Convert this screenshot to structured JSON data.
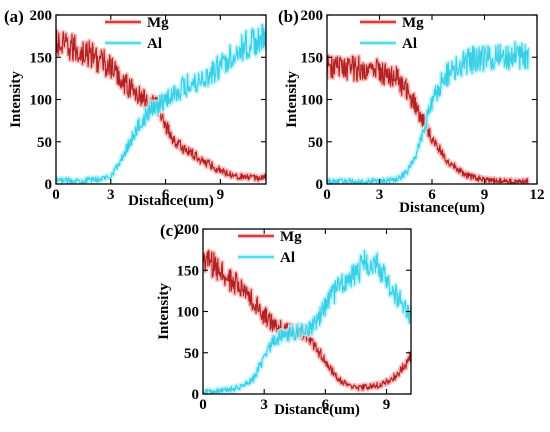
{
  "chart_data": [
    {
      "type": "line",
      "panel_label": "(a)",
      "xlabel": "Distance(um)",
      "ylabel": "Intensity",
      "xlim": [
        0,
        11.5
      ],
      "ylim": [
        0,
        200
      ],
      "xticks": [
        0,
        3,
        6,
        9
      ],
      "yticks": [
        0,
        50,
        100,
        150,
        200
      ],
      "legend_position": "top-center",
      "series": [
        {
          "name": "Mg",
          "color": "#b22222",
          "glow": "#ffb0b0",
          "x": [
            0,
            0.5,
            1,
            1.5,
            2,
            2.5,
            3,
            3.5,
            4,
            4.5,
            5,
            5.5,
            6,
            6.5,
            7,
            7.5,
            8,
            8.5,
            9,
            9.5,
            10,
            10.5,
            11,
            11.5
          ],
          "y": [
            165,
            162,
            160,
            155,
            152,
            145,
            138,
            125,
            115,
            105,
            98,
            95,
            70,
            50,
            42,
            35,
            28,
            22,
            16,
            12,
            9,
            8,
            7,
            8
          ]
        },
        {
          "name": "Al",
          "color": "#37d0e6",
          "glow": "#b8f2fb",
          "x": [
            0,
            0.5,
            1,
            1.5,
            2,
            2.5,
            3,
            3.5,
            4,
            4.5,
            5,
            5.5,
            6,
            6.5,
            7,
            7.5,
            8,
            8.5,
            9,
            9.5,
            10,
            10.5,
            11,
            11.5
          ],
          "y": [
            4,
            4,
            4,
            4,
            5,
            6,
            10,
            25,
            48,
            68,
            82,
            93,
            100,
            108,
            115,
            120,
            125,
            130,
            140,
            150,
            160,
            165,
            170,
            172
          ]
        }
      ]
    },
    {
      "type": "line",
      "panel_label": "(b)",
      "xlabel": "Distance(um)",
      "ylabel": "Intensity",
      "xlim": [
        0,
        12
      ],
      "ylim": [
        0,
        200
      ],
      "xticks": [
        0,
        3,
        6,
        9,
        12
      ],
      "yticks": [
        0,
        50,
        100,
        150,
        200
      ],
      "legend_position": "top-center",
      "series": [
        {
          "name": "Mg",
          "color": "#b22222",
          "glow": "#ffb0b0",
          "x": [
            0,
            0.5,
            1,
            1.5,
            2,
            2.5,
            3,
            3.5,
            4,
            4.5,
            5,
            5.5,
            6,
            6.5,
            7,
            7.5,
            8,
            8.5,
            9,
            9.5,
            10,
            10.5,
            11,
            11.5
          ],
          "y": [
            138,
            138,
            137,
            137,
            136,
            135,
            134,
            130,
            125,
            112,
            95,
            75,
            55,
            38,
            25,
            16,
            10,
            7,
            5,
            4,
            3,
            3,
            3,
            3
          ]
        },
        {
          "name": "Al",
          "color": "#37d0e6",
          "glow": "#b8f2fb",
          "x": [
            0,
            0.5,
            1,
            1.5,
            2,
            2.5,
            3,
            3.5,
            4,
            4.5,
            5,
            5.5,
            6,
            6.5,
            7,
            7.5,
            8,
            8.5,
            9,
            9.5,
            10,
            10.5,
            11,
            11.5
          ],
          "y": [
            3,
            3,
            3,
            3,
            3,
            3,
            3,
            4,
            6,
            12,
            30,
            62,
            95,
            118,
            132,
            140,
            145,
            148,
            150,
            150,
            150,
            152,
            152,
            150
          ]
        }
      ]
    },
    {
      "type": "line",
      "panel_label": "(c)",
      "xlabel": "Distance(um)",
      "ylabel": "Intensity",
      "xlim": [
        0,
        10.2
      ],
      "ylim": [
        0,
        200
      ],
      "xticks": [
        0,
        3,
        6,
        9
      ],
      "yticks": [
        0,
        50,
        100,
        150,
        200
      ],
      "legend_position": "top-center",
      "series": [
        {
          "name": "Mg",
          "color": "#b22222",
          "glow": "#ffb0b0",
          "x": [
            0,
            0.5,
            1,
            1.5,
            2,
            2.5,
            3,
            3.5,
            4,
            4.5,
            5,
            5.5,
            6,
            6.5,
            7,
            7.5,
            8,
            8.5,
            9,
            9.5,
            10,
            10.2
          ],
          "y": [
            165,
            155,
            145,
            135,
            125,
            110,
            95,
            82,
            78,
            76,
            74,
            60,
            38,
            22,
            12,
            8,
            8,
            10,
            14,
            22,
            38,
            45
          ]
        },
        {
          "name": "Al",
          "color": "#37d0e6",
          "glow": "#b8f2fb",
          "x": [
            0,
            0.5,
            1,
            1.5,
            2,
            2.5,
            3,
            3.5,
            4,
            4.5,
            5,
            5.5,
            6,
            6.5,
            7,
            7.5,
            8,
            8.5,
            9,
            9.5,
            10,
            10.2
          ],
          "y": [
            2,
            3,
            4,
            6,
            10,
            20,
            45,
            65,
            72,
            75,
            78,
            85,
            105,
            125,
            140,
            148,
            160,
            155,
            140,
            120,
            100,
            90
          ]
        }
      ]
    }
  ]
}
